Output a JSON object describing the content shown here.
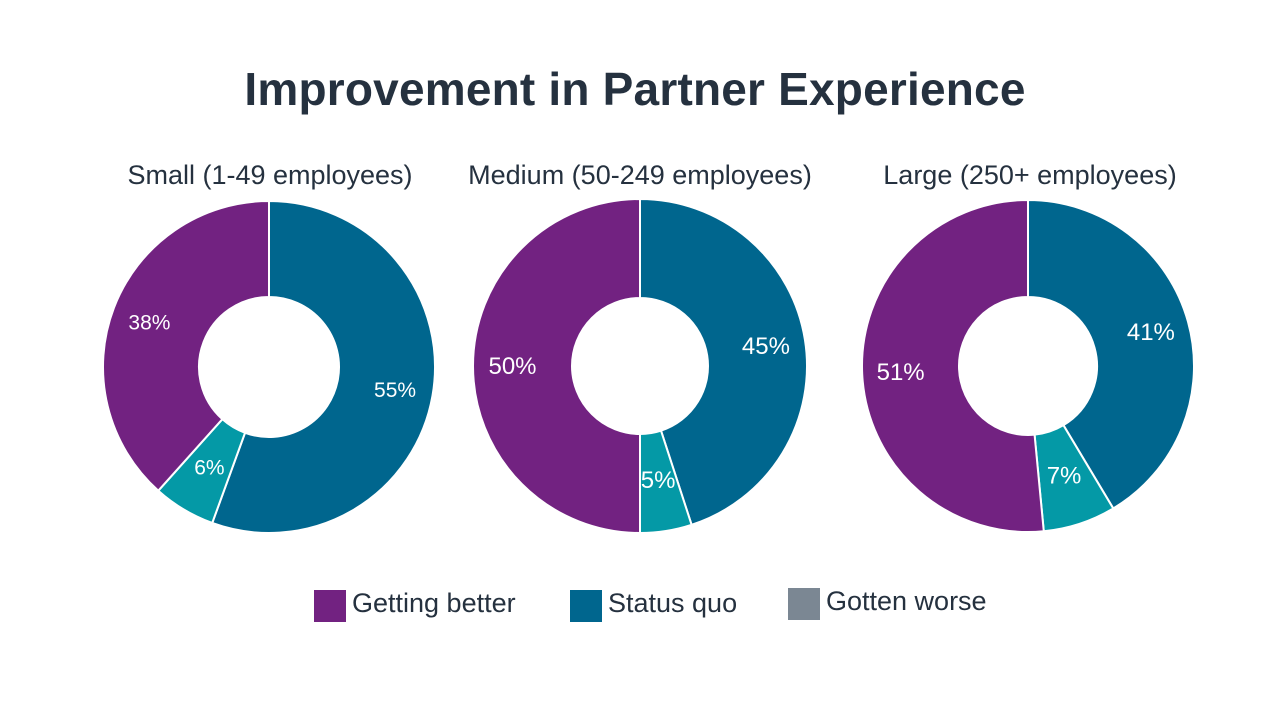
{
  "title": "Improvement in Partner Experience",
  "colors": {
    "getting_better": "#722281",
    "status_quo": "#00668e",
    "gotten_worse": "#7b8793",
    "small_slice": "#0499a6",
    "text": "#25313f"
  },
  "legend": [
    {
      "label": "Getting better",
      "color": "#722281"
    },
    {
      "label": "Status quo",
      "color": "#00668e"
    },
    {
      "label": "Gotten worse",
      "color": "#7b8793"
    }
  ],
  "chart_data": [
    {
      "type": "pie",
      "title": "Small (1-49 employees)",
      "slices": [
        {
          "category": "Status quo",
          "value": 55,
          "label": "55%",
          "color": "#00668e"
        },
        {
          "category": "Gotten worse",
          "value": 6,
          "label": "6%",
          "color": "#0499a6"
        },
        {
          "category": "Getting better",
          "value": 38,
          "label": "38%",
          "color": "#722281"
        }
      ]
    },
    {
      "type": "pie",
      "title": "Medium (50-249 employees)",
      "slices": [
        {
          "category": "Status quo",
          "value": 45,
          "label": "45%",
          "color": "#00668e"
        },
        {
          "category": "Gotten worse",
          "value": 5,
          "label": "5%",
          "color": "#0499a6"
        },
        {
          "category": "Getting better",
          "value": 50,
          "label": "50%",
          "color": "#722281"
        }
      ]
    },
    {
      "type": "pie",
      "title": "Large (250+ employees)",
      "slices": [
        {
          "category": "Status quo",
          "value": 41,
          "label": "41%",
          "color": "#00668e"
        },
        {
          "category": "Gotten worse",
          "value": 7,
          "label": "7%",
          "color": "#0499a6"
        },
        {
          "category": "Getting better",
          "value": 51,
          "label": "51%",
          "color": "#722281"
        }
      ]
    }
  ]
}
